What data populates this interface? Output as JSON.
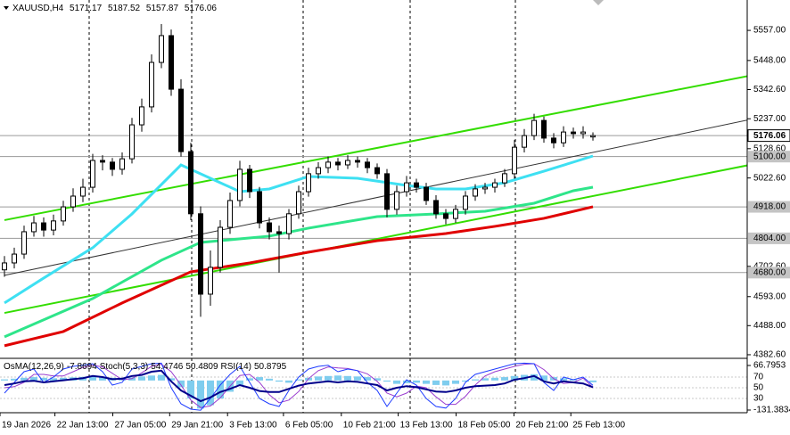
{
  "chart_data": {
    "type": "candlestick",
    "symbol": "XAUUSD,H4",
    "open": [
      4690,
      4715,
      4747,
      4828,
      4860,
      4834,
      4867,
      4918,
      4957,
      4989,
      5086,
      5080,
      5054,
      5092,
      5215,
      5280,
      5441,
      5538,
      5344,
      5118,
      4893,
      4602,
      4699,
      4844,
      4941,
      5054,
      4973,
      4860,
      4828,
      4821,
      4893,
      4973,
      5038,
      5060,
      5080,
      5070,
      5086,
      5080,
      5060,
      5038,
      4909,
      4973,
      5005,
      4989,
      4941,
      4893,
      4876,
      4909,
      4957,
      4983,
      4989,
      5005,
      5038,
      5134,
      5176,
      5231,
      5167,
      5150,
      5189,
      5183,
      5171.17
    ],
    "high": [
      4740,
      4770,
      4850,
      4885,
      4880,
      4890,
      4940,
      4985,
      5020,
      5110,
      5105,
      5095,
      5115,
      5240,
      5310,
      5470,
      5580,
      5560,
      5380,
      5150,
      4920,
      4760,
      4870,
      4970,
      5085,
      5070,
      4990,
      4880,
      4850,
      4910,
      4995,
      5060,
      5080,
      5100,
      5095,
      5105,
      5100,
      5095,
      5075,
      5055,
      4995,
      5030,
      5020,
      5005,
      4960,
      4910,
      4925,
      4975,
      5000,
      5005,
      5020,
      5055,
      5160,
      5200,
      5255,
      5245,
      5185,
      5210,
      5205,
      5210,
      5187.52
    ],
    "low": [
      4665,
      4695,
      4730,
      4810,
      4810,
      4815,
      4850,
      4900,
      4935,
      4970,
      5050,
      5030,
      5035,
      5075,
      5190,
      5260,
      5420,
      5320,
      5100,
      4870,
      4520,
      4560,
      4680,
      4820,
      4920,
      4950,
      4840,
      4800,
      4680,
      4800,
      4875,
      4955,
      5020,
      5040,
      5050,
      5055,
      5060,
      5040,
      5020,
      4880,
      4890,
      4955,
      4970,
      4925,
      4875,
      4855,
      4860,
      4890,
      4940,
      4965,
      4970,
      4990,
      5020,
      5115,
      5160,
      5150,
      5130,
      5135,
      5165,
      5165,
      5157.87
    ],
    "close": [
      4715,
      4747,
      4828,
      4860,
      4834,
      4867,
      4918,
      4957,
      4989,
      5086,
      5080,
      5054,
      5092,
      5215,
      5280,
      5441,
      5538,
      5344,
      5118,
      4893,
      4602,
      4699,
      4844,
      4941,
      5054,
      4973,
      4860,
      4828,
      4821,
      4893,
      4973,
      5038,
      5060,
      5080,
      5070,
      5086,
      5080,
      5060,
      5038,
      4909,
      4973,
      5005,
      4989,
      4941,
      4893,
      4876,
      4909,
      4957,
      4983,
      4989,
      5005,
      5038,
      5134,
      5176,
      5231,
      5167,
      5150,
      5189,
      5183,
      5189,
      5176.06
    ],
    "ylim": [
      4376,
      5667
    ],
    "yticks": [
      {
        "value": 5557,
        "label": "5557.00"
      },
      {
        "value": 5448,
        "label": "5448.00"
      },
      {
        "value": 5342.6,
        "label": "5342.60"
      },
      {
        "value": 5237,
        "label": "5237.00"
      },
      {
        "value": 5128.6,
        "label": "5128.60"
      },
      {
        "value": 5022.6,
        "label": "5022.60"
      },
      {
        "value": 4702.6,
        "label": "4702.60"
      },
      {
        "value": 4593,
        "label": "4593.00"
      },
      {
        "value": 4488,
        "label": "4488.00"
      },
      {
        "value": 4382.6,
        "label": "4382.60"
      }
    ],
    "levels": [
      {
        "value": 5100,
        "label": "5100.00"
      },
      {
        "value": 4918,
        "label": "4918.00"
      },
      {
        "value": 4804,
        "label": "4804.00"
      },
      {
        "value": 4680,
        "label": "4680.00"
      }
    ],
    "xticks": [
      {
        "value": 0,
        "label": "19 Jan 2026"
      },
      {
        "value": 5.6,
        "label": "22 Jan 13:00"
      },
      {
        "value": 11.5,
        "label": "27 Jan 05:00"
      },
      {
        "value": 17.3,
        "label": "29 Jan 21:00"
      },
      {
        "value": 23.2,
        "label": "3 Feb 13:00"
      },
      {
        "value": 28.9,
        "label": "6 Feb 05:00"
      },
      {
        "value": 34.8,
        "label": "10 Feb 21:00"
      },
      {
        "value": 40.6,
        "label": "13 Feb 13:00"
      },
      {
        "value": 46.5,
        "label": "18 Feb 05:00"
      },
      {
        "value": 52.4,
        "label": "20 Feb 21:00"
      },
      {
        "value": 58.2,
        "label": "25 Feb 13:00"
      }
    ],
    "moving_averages": [
      {
        "color": "#3ee0f2",
        "x": [
          0,
          4,
          9,
          13,
          18,
          21,
          24,
          27,
          31,
          36,
          41,
          44,
          47,
          51,
          55,
          58,
          60
        ],
        "values": [
          4570,
          4660.2,
          4769.9,
          4892.5,
          5069.9,
          5021.5,
          4973.2,
          4982.8,
          5028,
          5021.5,
          4995.7,
          4982.8,
          4982.8,
          5005.4,
          5047.3,
          5080,
          5102.2
        ]
      },
      {
        "color": "#2ee58a",
        "x": [
          0,
          9,
          16,
          20,
          27,
          31,
          38,
          44,
          49,
          54,
          58,
          60
        ],
        "values": [
          4447.3,
          4586.1,
          4724.8,
          4789.3,
          4811.9,
          4841,
          4882.8,
          4892.5,
          4902.2,
          4931.2,
          4976.4,
          4989.3
        ]
      },
      {
        "color": "#e00000",
        "x": [
          0,
          6,
          12,
          19,
          25,
          31,
          38,
          45,
          50,
          55,
          60
        ],
        "values": [
          4415.1,
          4466.7,
          4570,
          4682.8,
          4715.1,
          4754,
          4795.7,
          4821.5,
          4847.4,
          4876.4,
          4918.3
        ]
      }
    ],
    "trendlines": [
      {
        "color": "#33dd00",
        "width": 2,
        "x": [
          0,
          76
        ],
        "values": [
          4870,
          5393
        ]
      },
      {
        "color": "#33dd00",
        "width": 2,
        "x": [
          0,
          76
        ],
        "values": [
          4534,
          5070
        ]
      },
      {
        "color": "#333333",
        "width": 1,
        "x": [
          0,
          76
        ],
        "values": [
          4670,
          5234
        ]
      }
    ],
    "indicator": {
      "ylim": [
        0,
        100
      ],
      "yticks": [
        70,
        50,
        30
      ],
      "osma": {
        "name": "OsMA(12,26,9)",
        "color": "#7fcdee",
        "ylim": [
          -131.3834,
          66.7953
        ],
        "ticks": [
          66.7953,
          -131.3834
        ],
        "values": [
          5,
          8,
          12,
          15,
          12,
          10,
          12,
          14,
          16,
          18,
          15,
          12,
          10,
          14,
          18,
          22,
          25,
          10,
          -30,
          -80,
          -125,
          -110,
          -80,
          -50,
          -20,
          10,
          15,
          8,
          -5,
          -10,
          5,
          12,
          18,
          20,
          22,
          20,
          18,
          15,
          10,
          -5,
          -15,
          -12,
          -10,
          -15,
          -20,
          -22,
          -15,
          -5,
          5,
          10,
          12,
          15,
          20,
          25,
          28,
          22,
          15,
          10,
          5,
          -2,
          -7.8694
        ]
      },
      "stoch": {
        "name": "Stoch(5,3,3)",
        "color": "#1e3cff",
        "signal_color": "#9a3ccf",
        "main": [
          40,
          60,
          80,
          85,
          60,
          70,
          85,
          90,
          92,
          95,
          80,
          55,
          60,
          85,
          90,
          95,
          96,
          50,
          20,
          10,
          8,
          30,
          55,
          75,
          90,
          60,
          30,
          20,
          15,
          45,
          70,
          85,
          90,
          92,
          80,
          85,
          82,
          60,
          45,
          15,
          40,
          65,
          55,
          30,
          15,
          12,
          30,
          60,
          75,
          80,
          85,
          90,
          95,
          96,
          95,
          60,
          45,
          70,
          65,
          70,
          54.4746
        ],
        "signal": [
          50,
          52,
          60,
          75,
          75,
          72,
          72,
          80,
          88,
          92,
          89,
          77,
          65,
          67,
          78,
          90,
          94,
          80,
          55,
          27,
          13,
          16,
          31,
          53,
          73,
          75,
          60,
          37,
          22,
          27,
          43,
          67,
          82,
          89,
          87,
          86,
          82,
          76,
          62,
          40,
          33,
          40,
          53,
          50,
          33,
          19,
          19,
          34,
          55,
          72,
          80,
          85,
          90,
          94,
          95,
          84,
          67,
          58,
          60,
          68,
          50.4809
        ]
      },
      "rsi": {
        "name": "RSI(14)",
        "color": "#00008b",
        "values": [
          55,
          58,
          62,
          63,
          60,
          62,
          64,
          66,
          68,
          72,
          70,
          66,
          67,
          72,
          74,
          80,
          82,
          62,
          45,
          35,
          25,
          32,
          42,
          48,
          55,
          50,
          44,
          42,
          42,
          48,
          54,
          58,
          60,
          62,
          60,
          62,
          61,
          58,
          55,
          45,
          50,
          53,
          51,
          47,
          43,
          42,
          45,
          50,
          53,
          54,
          55,
          58,
          65,
          68,
          72,
          62,
          58,
          62,
          60,
          58,
          50.8795
        ]
      }
    }
  }
}
